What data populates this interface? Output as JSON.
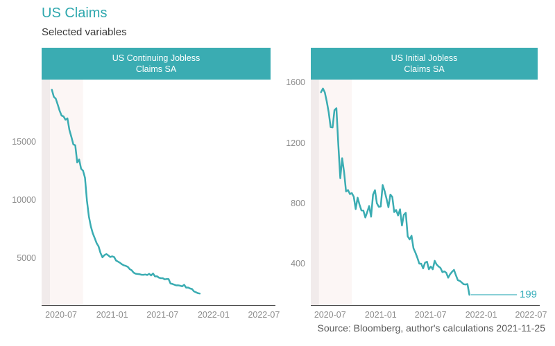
{
  "page": {
    "title": "US Claims",
    "subtitle": "Selected variables",
    "source_note": "Source: Bloomberg, author's calculations 2021-11-25"
  },
  "colors": {
    "accent_teal": "#3AACB2",
    "title_teal": "#2FA8AE",
    "strip_bg": "#3AACB2",
    "strip_text": "#FFFFFF",
    "line": "#3AACB2",
    "last_value_text": "#3BAFBB",
    "band_dark": "#F1EBEB",
    "band_light": "#FCF6F5",
    "axis_line": "#4D4D4D",
    "tick_label": "#8C8C8C",
    "source_text": "#595959",
    "background": "#FFFFFF"
  },
  "chart_data": [
    {
      "type": "line",
      "name": "us-continuing-jobless-claims-sa",
      "strip": {
        "line1": "US Continuing Jobless",
        "line2": "Claims SA"
      },
      "ylim": [
        1050,
        20400
      ],
      "y_ticks": [
        5000,
        10000,
        15000
      ],
      "xlim": [
        "2020-04-22",
        "2022-07-25"
      ],
      "x_ticks": [
        {
          "label": "2020-07",
          "date": "2020-07-01"
        },
        {
          "label": "2021-01",
          "date": "2021-01-01"
        },
        {
          "label": "2021-07",
          "date": "2021-07-01"
        },
        {
          "label": "2022-01",
          "date": "2022-01-01"
        },
        {
          "label": "2022-07",
          "date": "2022-07-01"
        }
      ],
      "shaded_bands": [
        {
          "start": "2020-04-22",
          "end": "2020-05-22",
          "color_key": "band_dark"
        },
        {
          "start": "2020-05-22",
          "end": "2020-09-18",
          "color_key": "band_light"
        }
      ],
      "series": [
        {
          "name": "US Continuing Jobless Claims SA",
          "dates": [
            "2020-05-29",
            "2020-06-05",
            "2020-06-12",
            "2020-06-19",
            "2020-06-26",
            "2020-07-03",
            "2020-07-10",
            "2020-07-17",
            "2020-07-24",
            "2020-07-31",
            "2020-08-07",
            "2020-08-14",
            "2020-08-21",
            "2020-08-28",
            "2020-09-04",
            "2020-09-11",
            "2020-09-18",
            "2020-09-25",
            "2020-10-02",
            "2020-10-09",
            "2020-10-16",
            "2020-10-23",
            "2020-10-30",
            "2020-11-06",
            "2020-11-13",
            "2020-11-20",
            "2020-11-27",
            "2020-12-04",
            "2020-12-11",
            "2020-12-18",
            "2020-12-25",
            "2021-01-01",
            "2021-01-08",
            "2021-01-15",
            "2021-01-22",
            "2021-01-29",
            "2021-02-05",
            "2021-02-12",
            "2021-02-19",
            "2021-02-26",
            "2021-03-05",
            "2021-03-12",
            "2021-03-19",
            "2021-03-26",
            "2021-04-02",
            "2021-04-09",
            "2021-04-16",
            "2021-04-23",
            "2021-04-30",
            "2021-05-07",
            "2021-05-14",
            "2021-05-21",
            "2021-05-28",
            "2021-06-04",
            "2021-06-11",
            "2021-06-18",
            "2021-06-25",
            "2021-07-02",
            "2021-07-09",
            "2021-07-16",
            "2021-07-23",
            "2021-07-30",
            "2021-08-06",
            "2021-08-13",
            "2021-08-20",
            "2021-08-27",
            "2021-09-03",
            "2021-09-10",
            "2021-09-17",
            "2021-09-24",
            "2021-10-01",
            "2021-10-08",
            "2021-10-15",
            "2021-10-22",
            "2021-10-29",
            "2021-11-05",
            "2021-11-12"
          ],
          "values": [
            19521,
            18920,
            18760,
            18260,
            17720,
            17310,
            17244,
            16951,
            17071,
            16090,
            15480,
            14844,
            14759,
            13292,
            13544,
            12747,
            12580,
            11979,
            10018,
            8665,
            7823,
            7222,
            6801,
            6370,
            6089,
            5527,
            5157,
            5344,
            5433,
            5322,
            5180,
            5240,
            5181,
            4878,
            4785,
            4690,
            4558,
            4469,
            4419,
            4337,
            4144,
            4040,
            3841,
            3753,
            3727,
            3708,
            3660,
            3653,
            3680,
            3640,
            3738,
            3602,
            3771,
            3517,
            3534,
            3413,
            3366,
            3367,
            3265,
            3296,
            3296,
            2908,
            2866,
            2808,
            2748,
            2752,
            2715,
            2665,
            2802,
            2560,
            2562,
            2480,
            2438,
            2239,
            2160,
            2080,
            2049
          ]
        }
      ]
    },
    {
      "type": "line",
      "name": "us-initial-jobless-claims-sa",
      "strip": {
        "line1": "US Initial Jobless",
        "line2": "Claims SA"
      },
      "ylim": [
        130,
        1625
      ],
      "y_ticks": [
        400,
        800,
        1200,
        1600
      ],
      "xlim": [
        "2020-04-22",
        "2022-07-25"
      ],
      "x_ticks": [
        {
          "label": "2020-07",
          "date": "2020-07-01"
        },
        {
          "label": "2021-01",
          "date": "2021-01-01"
        },
        {
          "label": "2021-07",
          "date": "2021-07-01"
        },
        {
          "label": "2022-01",
          "date": "2022-01-01"
        },
        {
          "label": "2022-07",
          "date": "2022-07-01"
        }
      ],
      "shaded_bands": [
        {
          "start": "2020-04-22",
          "end": "2020-05-22",
          "color_key": "band_dark"
        },
        {
          "start": "2020-05-22",
          "end": "2020-09-18",
          "color_key": "band_light"
        }
      ],
      "last_value_label": "199",
      "series": [
        {
          "name": "US Initial Jobless Claims SA",
          "dates": [
            "2020-05-29",
            "2020-06-05",
            "2020-06-12",
            "2020-06-19",
            "2020-06-26",
            "2020-07-03",
            "2020-07-10",
            "2020-07-17",
            "2020-07-24",
            "2020-07-31",
            "2020-08-07",
            "2020-08-14",
            "2020-08-21",
            "2020-08-28",
            "2020-09-04",
            "2020-09-11",
            "2020-09-18",
            "2020-09-25",
            "2020-10-02",
            "2020-10-09",
            "2020-10-16",
            "2020-10-23",
            "2020-10-30",
            "2020-11-06",
            "2020-11-13",
            "2020-11-20",
            "2020-11-27",
            "2020-12-04",
            "2020-12-11",
            "2020-12-18",
            "2020-12-25",
            "2021-01-01",
            "2021-01-08",
            "2021-01-15",
            "2021-01-22",
            "2021-01-29",
            "2021-02-05",
            "2021-02-12",
            "2021-02-19",
            "2021-02-26",
            "2021-03-05",
            "2021-03-12",
            "2021-03-19",
            "2021-03-26",
            "2021-04-02",
            "2021-04-09",
            "2021-04-16",
            "2021-04-23",
            "2021-04-30",
            "2021-05-07",
            "2021-05-14",
            "2021-05-21",
            "2021-05-28",
            "2021-06-04",
            "2021-06-11",
            "2021-06-18",
            "2021-06-25",
            "2021-07-02",
            "2021-07-09",
            "2021-07-16",
            "2021-07-23",
            "2021-07-30",
            "2021-08-06",
            "2021-08-13",
            "2021-08-20",
            "2021-08-27",
            "2021-09-03",
            "2021-09-10",
            "2021-09-17",
            "2021-09-24",
            "2021-10-01",
            "2021-10-08",
            "2021-10-15",
            "2021-10-22",
            "2021-10-29",
            "2021-11-05",
            "2021-11-12",
            "2021-11-19"
          ],
          "values": [
            1541,
            1566,
            1540,
            1480,
            1408,
            1310,
            1308,
            1422,
            1435,
            1191,
            971,
            1104,
            1011,
            884,
            893,
            866,
            873,
            849,
            767,
            842,
            797,
            758,
            757,
            711,
            748,
            787,
            716,
            862,
            892,
            806,
            782,
            784,
            926,
            886,
            836,
            779,
            863,
            847,
            747,
            761,
            725,
            765,
            658,
            729,
            742,
            586,
            566,
            590,
            507,
            478,
            444,
            405,
            405,
            374,
            412,
            418,
            368,
            386,
            368,
            424,
            399,
            387,
            377,
            349,
            354,
            345,
            312,
            335,
            351,
            364,
            329,
            296,
            291,
            281,
            269,
            267,
            270,
            199
          ]
        }
      ]
    }
  ]
}
